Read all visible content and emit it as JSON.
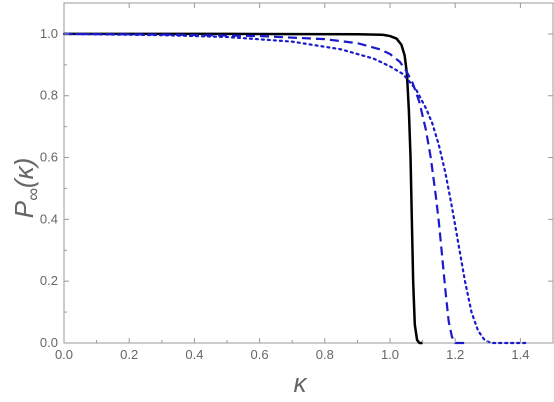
{
  "chart_data": {
    "type": "line",
    "xlabel": "κ",
    "ylabel": "P∞(κ)",
    "ylabel_parts": {
      "main": "P",
      "sub": "∞",
      "arg": "(κ)"
    },
    "xlim": [
      0,
      1.5
    ],
    "ylim": [
      0,
      1.1
    ],
    "x_ticks": [
      0.0,
      0.2,
      0.4,
      0.6,
      0.8,
      1.0,
      1.2,
      1.4
    ],
    "x_tick_labels": [
      "0.0",
      "0.2",
      "0.4",
      "0.6",
      "0.8",
      "1.0",
      "1.2",
      "1.4"
    ],
    "y_ticks": [
      0.0,
      0.2,
      0.4,
      0.6,
      0.8,
      1.0
    ],
    "y_tick_labels": [
      "0.0",
      "0.2",
      "0.4",
      "0.6",
      "0.8",
      "1.0"
    ],
    "grid": false,
    "series": [
      {
        "style": "solid",
        "color": "#000000",
        "points": [
          [
            0,
            1.0
          ],
          [
            0.5,
            1.0
          ],
          [
            0.9,
            0.999
          ],
          [
            0.98,
            0.997
          ],
          [
            1.0,
            0.993
          ],
          [
            1.02,
            0.985
          ],
          [
            1.035,
            0.965
          ],
          [
            1.045,
            0.93
          ],
          [
            1.052,
            0.87
          ],
          [
            1.058,
            0.75
          ],
          [
            1.063,
            0.6
          ],
          [
            1.067,
            0.4
          ],
          [
            1.071,
            0.2
          ],
          [
            1.076,
            0.06
          ],
          [
            1.083,
            0.01
          ],
          [
            1.09,
            0.0
          ],
          [
            1.1,
            0.0
          ]
        ]
      },
      {
        "style": "dashed",
        "color": "#1a1acc",
        "points": [
          [
            0,
            1.0
          ],
          [
            0.3,
            0.998
          ],
          [
            0.6,
            0.993
          ],
          [
            0.8,
            0.983
          ],
          [
            0.9,
            0.97
          ],
          [
            0.97,
            0.95
          ],
          [
            1.0,
            0.935
          ],
          [
            1.03,
            0.91
          ],
          [
            1.05,
            0.88
          ],
          [
            1.07,
            0.84
          ],
          [
            1.09,
            0.78
          ],
          [
            1.11,
            0.69
          ],
          [
            1.125,
            0.6
          ],
          [
            1.14,
            0.48
          ],
          [
            1.15,
            0.39
          ],
          [
            1.16,
            0.28
          ],
          [
            1.17,
            0.17
          ],
          [
            1.18,
            0.07
          ],
          [
            1.19,
            0.02
          ],
          [
            1.2,
            0.0
          ],
          [
            1.23,
            0.0
          ]
        ]
      },
      {
        "style": "dotted",
        "color": "#1a1acc",
        "points": [
          [
            0,
            1.0
          ],
          [
            0.3,
            0.996
          ],
          [
            0.5,
            0.99
          ],
          [
            0.7,
            0.975
          ],
          [
            0.85,
            0.95
          ],
          [
            0.95,
            0.92
          ],
          [
            1.0,
            0.895
          ],
          [
            1.04,
            0.87
          ],
          [
            1.08,
            0.82
          ],
          [
            1.11,
            0.76
          ],
          [
            1.13,
            0.71
          ],
          [
            1.15,
            0.64
          ],
          [
            1.17,
            0.55
          ],
          [
            1.19,
            0.44
          ],
          [
            1.21,
            0.32
          ],
          [
            1.23,
            0.2
          ],
          [
            1.25,
            0.1
          ],
          [
            1.27,
            0.04
          ],
          [
            1.29,
            0.01
          ],
          [
            1.31,
            0.0
          ],
          [
            1.42,
            0.0
          ]
        ]
      }
    ]
  }
}
